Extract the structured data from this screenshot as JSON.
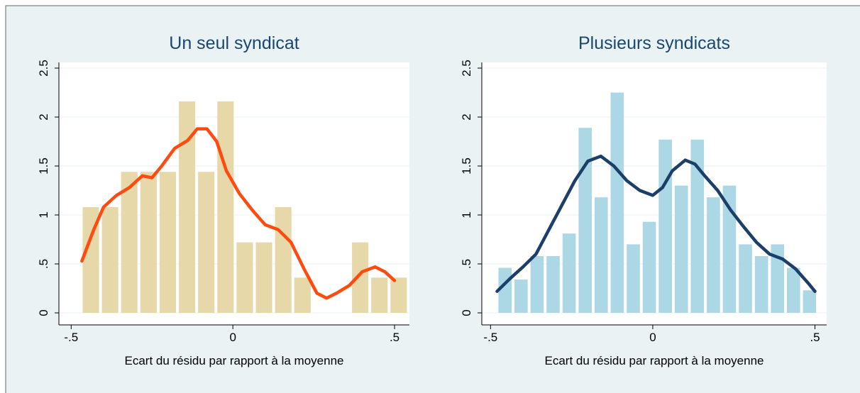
{
  "chart_data": [
    {
      "type": "histogram",
      "title": "Un seul syndicat",
      "xlabel": "Ecart du résidu par rapport à la moyenne",
      "bins": [
        -0.469,
        -0.4095,
        -0.35,
        -0.2905,
        -0.231,
        -0.1715,
        -0.112,
        -0.0525,
        0.007,
        0.0665,
        0.126,
        0.1855,
        0.245,
        0.3045,
        0.364,
        0.4235,
        0.483,
        0.5425
      ],
      "values": [
        1.08,
        1.08,
        1.44,
        1.44,
        1.44,
        2.16,
        1.44,
        2.16,
        0.72,
        0.72,
        1.08,
        0.36,
        0,
        0,
        0.72,
        0.36,
        0.36
      ],
      "color": "#e6d8a8",
      "curve": {
        "color": "#ff4a10",
        "x": [
          -0.467,
          -0.43,
          -0.4,
          -0.36,
          -0.32,
          -0.28,
          -0.25,
          -0.22,
          -0.18,
          -0.14,
          -0.11,
          -0.08,
          -0.05,
          -0.02,
          0.02,
          0.06,
          0.1,
          0.14,
          0.18,
          0.22,
          0.26,
          0.29,
          0.32,
          0.36,
          0.4,
          0.44,
          0.47,
          0.5
        ],
        "values": [
          0.53,
          0.85,
          1.08,
          1.2,
          1.28,
          1.4,
          1.38,
          1.5,
          1.68,
          1.76,
          1.88,
          1.88,
          1.75,
          1.45,
          1.22,
          1.05,
          0.9,
          0.85,
          0.72,
          0.45,
          0.2,
          0.15,
          0.2,
          0.28,
          0.42,
          0.47,
          0.42,
          0.33
        ]
      },
      "xlim": [
        -0.538,
        0.546
      ],
      "ylim": [
        -0.123,
        2.558
      ],
      "xticks": [
        {
          "value": -0.5,
          "label": "-.5"
        },
        0,
        {
          "value": 0.5,
          "label": ".5"
        }
      ],
      "yticks": [
        0,
        {
          "value": 0.5,
          "label": ".5"
        },
        1,
        1.5,
        2,
        2.5
      ],
      "grid": true
    },
    {
      "type": "histogram",
      "title": "Plusieurs syndicats",
      "xlabel": "Ecart du résidu par rapport à la moyenne",
      "bins": [
        -0.48,
        -0.4306,
        -0.3812,
        -0.3318,
        -0.2824,
        -0.233,
        -0.1836,
        -0.1342,
        -0.0848,
        -0.0354,
        0.014,
        0.0634,
        0.1128,
        0.1622,
        0.2116,
        0.261,
        0.3104,
        0.3598,
        0.4092,
        0.4586,
        0.508
      ],
      "values": [
        0.46,
        0.34,
        0.58,
        0.58,
        0.81,
        1.89,
        1.18,
        2.25,
        0.7,
        0.93,
        1.77,
        1.3,
        1.77,
        1.18,
        1.3,
        0.7,
        0.58,
        0.7,
        0.46,
        0.23
      ],
      "color": "#acd7e5",
      "curve": {
        "color": "#1c3f6a",
        "x": [
          -0.48,
          -0.44,
          -0.4,
          -0.36,
          -0.32,
          -0.28,
          -0.24,
          -0.2,
          -0.16,
          -0.12,
          -0.08,
          -0.04,
          0.0,
          0.03,
          0.06,
          0.1,
          0.13,
          0.16,
          0.2,
          0.24,
          0.28,
          0.32,
          0.36,
          0.4,
          0.44,
          0.48,
          0.5
        ],
        "values": [
          0.22,
          0.35,
          0.47,
          0.6,
          0.85,
          1.1,
          1.35,
          1.55,
          1.6,
          1.5,
          1.35,
          1.25,
          1.2,
          1.28,
          1.45,
          1.56,
          1.52,
          1.4,
          1.25,
          1.05,
          0.88,
          0.72,
          0.6,
          0.55,
          0.45,
          0.3,
          0.22
        ]
      },
      "xlim": [
        -0.527,
        0.536
      ],
      "ylim": [
        -0.123,
        2.558
      ],
      "xticks": [
        {
          "value": -0.5,
          "label": "-.5"
        },
        0,
        {
          "value": 0.5,
          "label": ".5"
        }
      ],
      "yticks": [
        0,
        {
          "value": 0.5,
          "label": ".5"
        },
        1,
        1.5,
        2,
        2.5
      ],
      "grid": true
    }
  ]
}
